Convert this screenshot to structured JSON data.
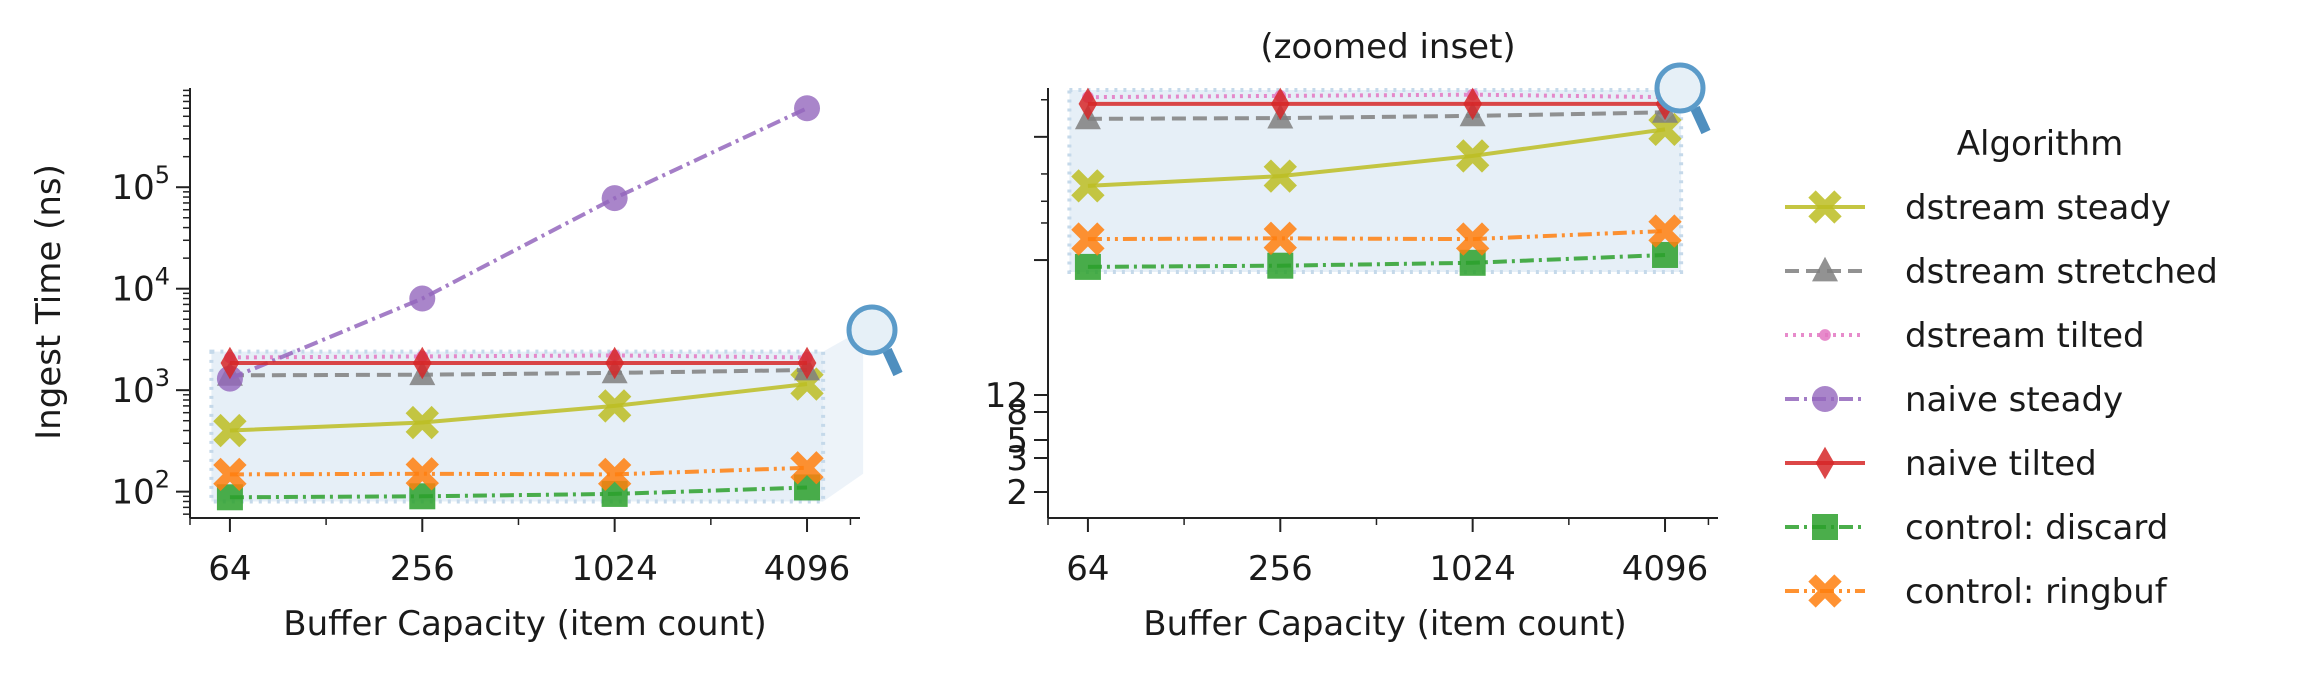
{
  "chart_data": [
    {
      "type": "line",
      "title": "",
      "xlabel": "Buffer Capacity (item count)",
      "ylabel": "Ingest Time (ns)",
      "x_scale": "log2",
      "y_scale": "log10",
      "x": [
        64,
        256,
        1024,
        4096
      ],
      "xticks": [
        "64",
        "256",
        "1024",
        "4096"
      ],
      "xlim": [
        48,
        6000
      ],
      "ylim": [
        55,
        950000
      ],
      "yticks": [
        {
          "base": "10",
          "exp": "2",
          "value": 100
        },
        {
          "base": "10",
          "exp": "3",
          "value": 1000
        },
        {
          "base": "10",
          "exp": "4",
          "value": 10000
        },
        {
          "base": "10",
          "exp": "5",
          "value": 100000
        }
      ],
      "grid": false,
      "series": [
        {
          "name": "dstream steady",
          "values": [
            400,
            480,
            700,
            1150
          ]
        },
        {
          "name": "dstream stretched",
          "values": [
            1400,
            1420,
            1480,
            1580
          ]
        },
        {
          "name": "dstream tilted",
          "values": [
            2100,
            2150,
            2200,
            2100
          ]
        },
        {
          "name": "naive steady",
          "values": [
            1300,
            8000,
            78000,
            600000
          ]
        },
        {
          "name": "naive tilted",
          "values": [
            1850,
            1850,
            1850,
            1850
          ]
        },
        {
          "name": "control: discard",
          "values": [
            88,
            90,
            95,
            110
          ]
        },
        {
          "name": "control: ringbuf",
          "values": [
            148,
            150,
            148,
            172
          ]
        }
      ]
    },
    {
      "type": "line",
      "title": "(zoomed inset)",
      "xlabel": "Buffer Capacity (item count)",
      "ylabel": "",
      "x_scale": "log2",
      "x": [
        64,
        256,
        1024,
        4096
      ],
      "xticks": [
        "64",
        "256",
        "1024",
        "4096"
      ],
      "xlim": [
        48,
        6000
      ],
      "yticks": [
        "2",
        "3",
        "5",
        "8",
        "12"
      ],
      "grid": false,
      "series": [
        {
          "name": "dstream steady",
          "values": [
            400,
            480,
            700,
            1150
          ]
        },
        {
          "name": "dstream stretched",
          "values": [
            1400,
            1420,
            1480,
            1580
          ]
        },
        {
          "name": "dstream tilted",
          "values": [
            2100,
            2150,
            2200,
            2100
          ]
        },
        {
          "name": "naive tilted",
          "values": [
            1850,
            1850,
            1850,
            1850
          ]
        },
        {
          "name": "control: discard",
          "values": [
            88,
            90,
            95,
            110
          ]
        },
        {
          "name": "control: ringbuf",
          "values": [
            148,
            150,
            148,
            172
          ]
        }
      ]
    }
  ],
  "legend": {
    "title": "Algorithm",
    "placement": "right",
    "items": [
      {
        "name": "dstream steady",
        "color": "#bcbd22",
        "marker": "x",
        "dash": "solid"
      },
      {
        "name": "dstream stretched",
        "color": "#7f7f7f",
        "marker": "triangle",
        "dash": "dashed"
      },
      {
        "name": "dstream tilted",
        "color": "#e377c2",
        "marker": "dot",
        "dash": "dotted"
      },
      {
        "name": "naive steady",
        "color": "#9467bd",
        "marker": "circle",
        "dash": "dashdot"
      },
      {
        "name": "naive tilted",
        "color": "#d62728",
        "marker": "diamond",
        "dash": "solid"
      },
      {
        "name": "control: discard",
        "color": "#2ca02c",
        "marker": "square",
        "dash": "dashdot"
      },
      {
        "name": "control: ringbuf",
        "color": "#ff7f0e",
        "marker": "x",
        "dash": "dashdotdot"
      }
    ]
  },
  "magnifier_icon": "magnifier-icon"
}
